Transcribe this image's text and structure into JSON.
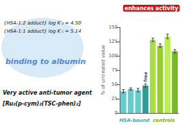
{
  "chart_data": {
    "type": "bar",
    "y_label": "% of untreated value",
    "categories": [
      null,
      null,
      null,
      null,
      null,
      null,
      null,
      null
    ],
    "values": [
      38,
      42,
      40,
      48,
      128,
      118,
      134,
      108
    ],
    "errors": [
      3,
      2,
      3,
      3,
      3,
      3,
      4,
      3
    ],
    "colors": [
      "#66cccc",
      "#66cccc",
      "#66cccc",
      "#339999",
      "#aadd44",
      "#99cc33",
      "#bbee55",
      "#77bb22"
    ],
    "ylim": [
      0,
      150
    ],
    "yticks": [
      0,
      25,
      50,
      75,
      100,
      125,
      150
    ],
    "grid": false,
    "tick_labels": "y",
    "annotations": [
      {
        "text": "HSA-bound",
        "color": "#44aaaa"
      },
      {
        "text": "controls",
        "color": "#88aa00"
      },
      {
        "text": "free",
        "color": "#335555"
      },
      {
        "text": "enhances",
        "color": "#cc1111"
      },
      {
        "text": "activity",
        "color": "#cc1111"
      },
      {
        "text": "{HSA-1:2 adduct} log K′₂ = 4.50",
        "color": "#111111"
      },
      {
        "text": "{HSA-1:1 adduct} log K′₁ = 5.14",
        "color": "#111111"
      },
      {
        "text": "binding to albumin",
        "color": "#5588cc"
      },
      {
        "text": "Very active anti-tumor agent",
        "color": "#111111"
      },
      {
        "text": "[Ru₂(p-cym)₂(TSC-phen)₂]",
        "color": "#111111"
      }
    ]
  }
}
